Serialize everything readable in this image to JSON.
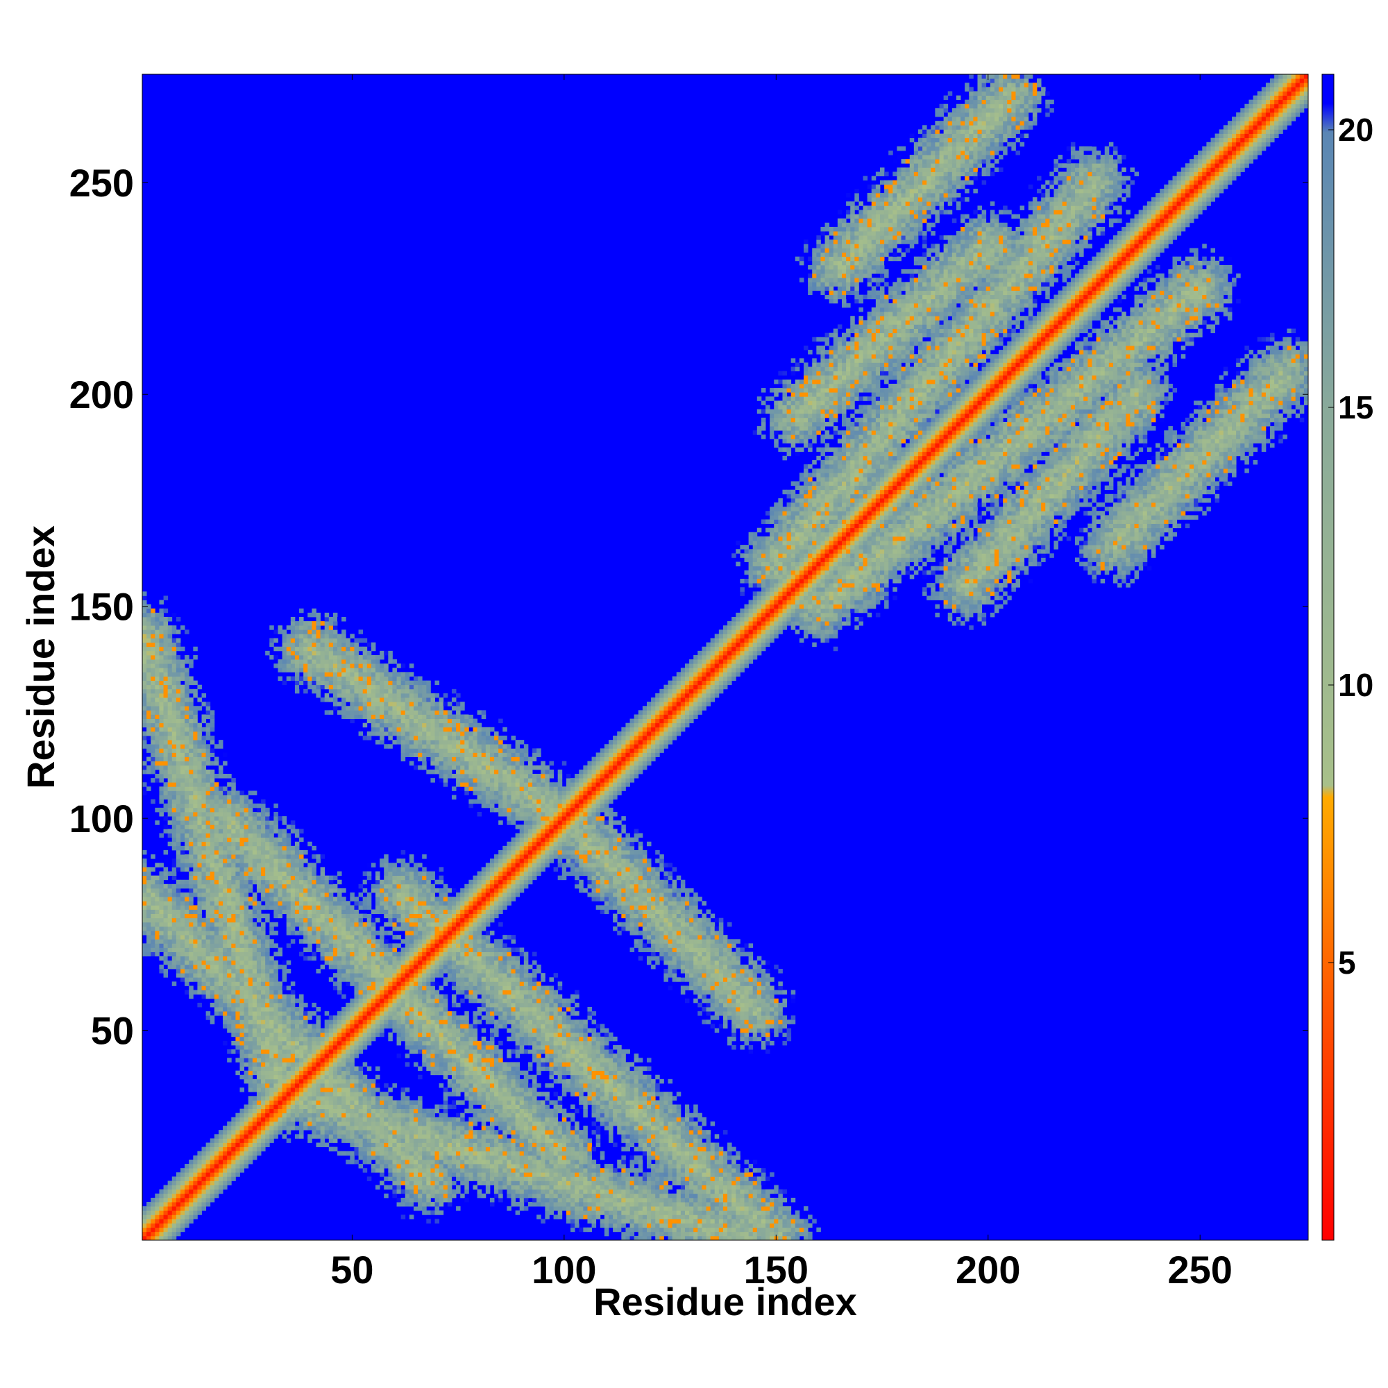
{
  "chart_data": {
    "type": "heatmap",
    "title": "",
    "xlabel": "Residue index",
    "ylabel": "Residue index",
    "n_residues": 275,
    "xlim": [
      1,
      275
    ],
    "ylim": [
      1,
      275
    ],
    "x_ticks": [
      50,
      100,
      150,
      200,
      250
    ],
    "y_ticks": [
      50,
      100,
      150,
      200,
      250
    ],
    "colorbar": {
      "range": [
        0,
        21
      ],
      "ticks": [
        5,
        10,
        15,
        20
      ],
      "stops": [
        {
          "value": 0,
          "color": "#ff0000"
        },
        {
          "value": 4,
          "color": "#ff5000"
        },
        {
          "value": 8,
          "color": "#ffaa00"
        },
        {
          "value": 10,
          "color": "#a8c08a"
        },
        {
          "value": 15,
          "color": "#8aaa9a"
        },
        {
          "value": 20,
          "color": "#5a86b4"
        },
        {
          "value": 20.5,
          "color": "#0000ff"
        },
        {
          "value": 21,
          "color": "#0000ff"
        }
      ]
    },
    "background_value": 21,
    "description": "Residue-residue distance map, symmetric about the diagonal",
    "diagonal_band_halfwidth": 6,
    "off_diagonal_bands": [
      {
        "from": [
          1,
          143
        ],
        "to": [
          34,
          35
        ]
      },
      {
        "from": [
          34,
          35
        ],
        "to": [
          143,
          1
        ]
      },
      {
        "from": [
          1,
          82
        ],
        "to": [
          68,
          15
        ]
      },
      {
        "from": [
          20,
          100
        ],
        "to": [
          100,
          20
        ]
      },
      {
        "from": [
          62,
          82
        ],
        "to": [
          150,
          1
        ]
      },
      {
        "from": [
          40,
          140
        ],
        "to": [
          100,
          100
        ]
      },
      {
        "from": [
          100,
          100
        ],
        "to": [
          145,
          55
        ]
      },
      {
        "from": [
          150,
          160
        ],
        "to": [
          225,
          250
        ]
      },
      {
        "from": [
          160,
          150
        ],
        "to": [
          250,
          225
        ]
      },
      {
        "from": [
          155,
          195
        ],
        "to": [
          200,
          235
        ]
      },
      {
        "from": [
          195,
          155
        ],
        "to": [
          235,
          200
        ]
      },
      {
        "from": [
          165,
          230
        ],
        "to": [
          205,
          270
        ]
      },
      {
        "from": [
          230,
          165
        ],
        "to": [
          270,
          205
        ]
      }
    ]
  }
}
